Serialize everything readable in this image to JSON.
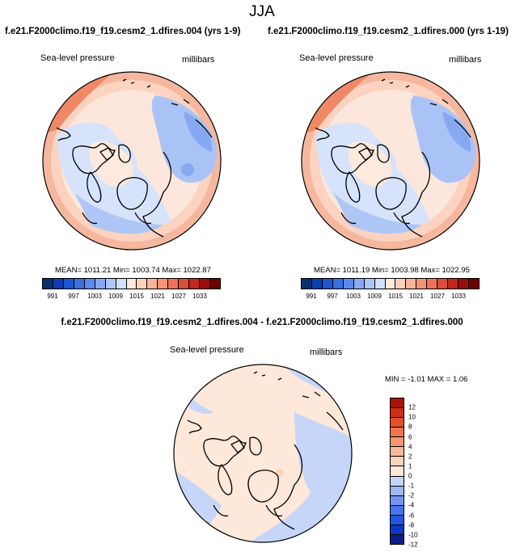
{
  "season": "JJA",
  "case1_title": "f.e21.F2000climo.f19_f19.cesm2_1.dfires.004 (yrs 1-9)",
  "case2_title": "f.e21.F2000climo.f19_f19.cesm2_1.dfires.000 (yrs 1-19)",
  "diff_title": "f.e21.F2000climo.f19_f19.cesm2_1.dfires.004 - f.e21.F2000climo.f19_f19.cesm2_1.dfires.000",
  "panels": [
    {
      "field_label": "Sea-level pressure",
      "units_label": "millibars",
      "stats_text": "MEAN= 1011.21   Min= 1003.74   Max= 1022.87",
      "mean": 1011.21,
      "min": 1003.74,
      "max": 1022.87
    },
    {
      "field_label": "Sea-level pressure",
      "units_label": "millibars",
      "stats_text": "MEAN= 1011.19   Min= 1003.98   Max= 1022.95",
      "mean": 1011.19,
      "min": 1003.98,
      "max": 1022.95
    },
    {
      "field_label": "Sea-level pressure",
      "units_label": "millibars",
      "stats_text": "MIN =  -1.01  MAX =   1.06",
      "min": -1.01,
      "max": 1.06
    }
  ],
  "abs_colorbar": {
    "colors": [
      "#08306b",
      "#0b3fb0",
      "#1f56d0",
      "#3a6fe0",
      "#5b8aec",
      "#86a9f2",
      "#aec6f6",
      "#d2e0fa",
      "#fde9dd",
      "#fbd1bc",
      "#f9b59b",
      "#f49477",
      "#ec7357",
      "#dc4d35",
      "#c2281c",
      "#9b0d0a",
      "#6e0000"
    ],
    "tick_labels": [
      "991",
      "997",
      "1003",
      "1009",
      "1015",
      "1021",
      "1027",
      "1033"
    ]
  },
  "diff_colorbar": {
    "colors": [
      "#0a1f8a",
      "#0c36c4",
      "#1f56e0",
      "#4677ea",
      "#7296f0",
      "#9fb7f4",
      "#c6d6f8",
      "#fde8da",
      "#fbd3bd",
      "#f9b898",
      "#f59770",
      "#ef744c",
      "#e2502c",
      "#cc2f14",
      "#a61608"
    ],
    "tick_labels": [
      "-12",
      "-10",
      "-8",
      "-6",
      "-4",
      "-2",
      "-1",
      "0",
      "1",
      "2",
      "4",
      "6",
      "8",
      "10",
      "12"
    ]
  }
}
